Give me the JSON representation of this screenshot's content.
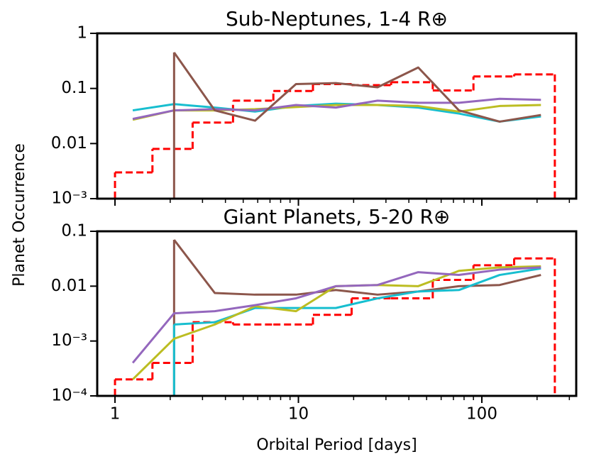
{
  "ylabel": "Planet Occurrence",
  "chart_data": [
    {
      "type": "line",
      "title": "Sub-Neptunes, 1-4 R⊕",
      "log_x": true,
      "log_y": true,
      "xlim": [
        0.8,
        327
      ],
      "ylim": [
        0.001,
        1
      ],
      "xticks": [
        1,
        10,
        100
      ],
      "xtick_labels": false,
      "xminor": [
        2,
        3,
        4,
        5,
        6,
        7,
        8,
        9,
        20,
        30,
        40,
        50,
        60,
        70,
        80,
        90,
        200,
        300
      ],
      "yticks": [
        1,
        0.1,
        0.01,
        {
          "value": 0.001,
          "label": "10⁻³"
        }
      ],
      "x": [
        1.25,
        2.1,
        3.5,
        5.8,
        9.7,
        16,
        27,
        45,
        75,
        125,
        210
      ],
      "series": [
        {
          "color": "#17becf",
          "values": [
            0.04,
            0.052,
            0.045,
            0.038,
            0.048,
            0.053,
            0.05,
            0.045,
            0.035,
            0.025,
            0.031
          ]
        },
        {
          "color": "#bcbd22",
          "values": [
            0.027,
            0.04,
            0.04,
            0.042,
            0.046,
            0.05,
            0.05,
            0.048,
            0.038,
            0.048,
            0.05
          ]
        },
        {
          "color": "#9467bd",
          "values": [
            0.028,
            0.04,
            0.042,
            0.04,
            0.05,
            0.045,
            0.06,
            0.055,
            0.055,
            0.065,
            0.062
          ]
        },
        {
          "color": "#8c564b",
          "values": [
            null,
            0.45,
            0.04,
            0.026,
            0.12,
            0.125,
            0.105,
            0.24,
            0.04,
            0.025,
            0.033
          ]
        }
      ],
      "step": {
        "color": "#ff0000",
        "bins": [
          1,
          1.6,
          2.65,
          4.4,
          7.3,
          12,
          19.5,
          32,
          54,
          90,
          150,
          250
        ],
        "values": [
          0.003,
          0.008,
          0.024,
          0.06,
          0.09,
          0.12,
          0.115,
          0.13,
          0.092,
          0.165,
          0.18
        ]
      }
    },
    {
      "type": "line",
      "title": "Giant Planets, 5-20 R⊕",
      "log_x": true,
      "log_y": true,
      "xlim": [
        0.8,
        327
      ],
      "ylim": [
        0.0001,
        0.1
      ],
      "xticks": [
        1,
        10,
        100
      ],
      "xtick_labels": true,
      "xlabel": "Orbital Period [days]",
      "xminor": [
        2,
        3,
        4,
        5,
        6,
        7,
        8,
        9,
        20,
        30,
        40,
        50,
        60,
        70,
        80,
        90,
        200,
        300
      ],
      "yticks": [
        0.1,
        0.01,
        {
          "value": 0.001,
          "label": "10⁻³"
        },
        {
          "value": 0.0001,
          "label": "10⁻⁴"
        }
      ],
      "x": [
        1.25,
        2.1,
        3.5,
        5.8,
        9.7,
        16,
        27,
        45,
        75,
        125,
        210
      ],
      "series": [
        {
          "color": "#8c564b",
          "values": [
            null,
            0.07,
            0.0075,
            0.007,
            0.007,
            0.0085,
            0.007,
            0.008,
            0.01,
            0.0105,
            0.016
          ]
        },
        {
          "color": "#17becf",
          "values": [
            null,
            0.002,
            0.0022,
            0.004,
            0.004,
            0.004,
            0.006,
            0.008,
            0.0085,
            0.016,
            0.021
          ]
        },
        {
          "color": "#bcbd22",
          "values": [
            0.0002,
            0.0011,
            0.002,
            0.0043,
            0.0035,
            0.01,
            0.0105,
            0.01,
            0.019,
            0.022,
            0.023
          ]
        },
        {
          "color": "#9467bd",
          "values": [
            0.0004,
            0.0032,
            0.0035,
            0.0045,
            0.006,
            0.01,
            0.0105,
            0.018,
            0.016,
            0.02,
            0.022
          ]
        }
      ],
      "step": {
        "color": "#ff0000",
        "bins": [
          1,
          1.6,
          2.65,
          4.4,
          7.3,
          12,
          19.5,
          32,
          54,
          90,
          150,
          250
        ],
        "values": [
          0.0002,
          0.0004,
          0.0022,
          0.002,
          0.002,
          0.003,
          0.006,
          0.006,
          0.013,
          0.024,
          0.032
        ]
      }
    }
  ]
}
